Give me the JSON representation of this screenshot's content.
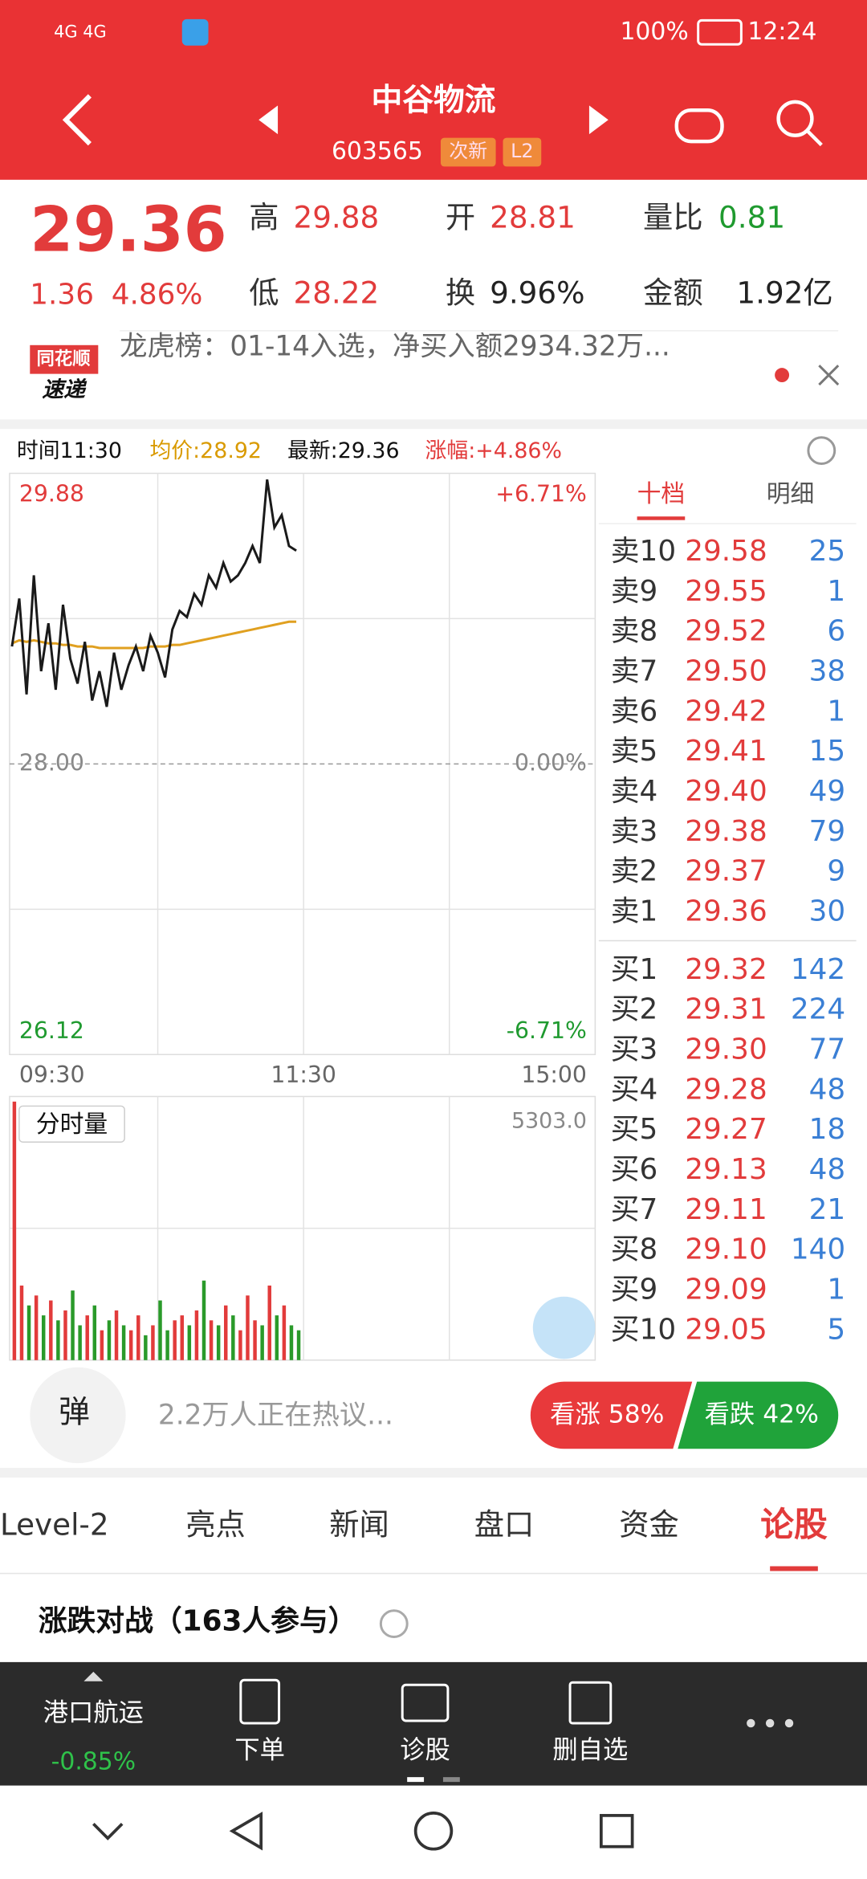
{
  "status": {
    "network": "4G 4G",
    "battery": "100%",
    "time": "12:24"
  },
  "header": {
    "name": "中谷物流",
    "code": "603565",
    "tags": [
      "次新",
      "L2"
    ]
  },
  "quote": {
    "price": "29.36",
    "change": "1.36",
    "percent": "4.86%",
    "stats": [
      {
        "label": "高",
        "value": "29.88"
      },
      {
        "label": "开",
        "value": "28.81"
      },
      {
        "label": "量比",
        "value": "0.81"
      },
      {
        "label": "低",
        "value": "28.22"
      },
      {
        "label": "换",
        "value": "9.96%"
      },
      {
        "label": "金额",
        "value": "1.92亿"
      }
    ]
  },
  "news": {
    "brand": [
      "同花顺",
      "速递"
    ],
    "text": "龙虎榜：01-14入选，净买入额2934.32万..."
  },
  "chart": {
    "time": "时间11:30",
    "average": "均价:28.92",
    "latest": "最新:29.36",
    "change": "涨幅:+4.86%",
    "ylim": [
      26.12,
      29.88
    ],
    "yticks": [
      29.88,
      {
        "value": 28,
        "label": "28.00"
      },
      26.12
    ],
    "y2ticks": [
      {
        "value": 6.71,
        "label": "+6.71%"
      },
      {
        "value": 0,
        "label": "0.00%"
      },
      {
        "value": -6.71,
        "label": "-6.71%"
      }
    ],
    "y2lim": [
      -6.71,
      6.71
    ],
    "xlim": [
      0,
      240
    ],
    "xticks": [
      {
        "value": 0,
        "label": "09:30"
      },
      {
        "value": 120,
        "label": "11:30"
      },
      {
        "value": 240,
        "label": "15:00"
      }
    ],
    "x": [
      0,
      3,
      6,
      9,
      12,
      15,
      18,
      21,
      24,
      27,
      30,
      33,
      36,
      39,
      42,
      45,
      48,
      51,
      54,
      57,
      60,
      63,
      66,
      69,
      72,
      75,
      78,
      81,
      84,
      87,
      90,
      93,
      96,
      99,
      102,
      105,
      108,
      111,
      114,
      117
    ],
    "price": [
      28.76,
      29.07,
      28.45,
      29.22,
      28.6,
      28.91,
      28.48,
      29.03,
      28.68,
      28.52,
      28.79,
      28.41,
      28.6,
      28.37,
      28.72,
      28.48,
      28.64,
      28.76,
      28.6,
      28.83,
      28.72,
      28.56,
      28.87,
      28.99,
      28.95,
      29.1,
      29.03,
      29.22,
      29.14,
      29.3,
      29.18,
      29.22,
      29.3,
      29.41,
      29.3,
      29.84,
      29.53,
      29.61,
      29.41,
      29.38
    ],
    "average_line": [
      28.78,
      28.8,
      28.79,
      28.8,
      28.79,
      28.78,
      28.78,
      28.77,
      28.77,
      28.76,
      28.76,
      28.76,
      28.75,
      28.75,
      28.75,
      28.75,
      28.75,
      28.75,
      28.75,
      28.76,
      28.76,
      28.76,
      28.77,
      28.77,
      28.78,
      28.79,
      28.8,
      28.81,
      28.82,
      28.83,
      28.84,
      28.85,
      28.86,
      28.87,
      28.88,
      28.89,
      28.9,
      28.91,
      28.92,
      28.92
    ],
    "price_color": "#1a1a1a",
    "average_color": "#e0a020",
    "volume_label": "分时量",
    "volume_max": "5303.0",
    "volume_ylim": [
      0,
      5303
    ],
    "volume": [
      5200,
      1500,
      1100,
      1300,
      900,
      1200,
      800,
      1000,
      1400,
      700,
      900,
      1100,
      600,
      800,
      1000,
      700,
      600,
      900,
      500,
      700,
      1200,
      600,
      800,
      900,
      700,
      1000,
      1600,
      800,
      700,
      1100,
      900,
      600,
      1300,
      800,
      700,
      1500,
      900,
      1100,
      700,
      600
    ],
    "up_color": "#e23b3b",
    "down_color": "#2a9a2a"
  },
  "order_book": {
    "tabs": [
      "十档",
      "明细"
    ],
    "sell": [
      {
        "label": "卖10",
        "price": "29.58",
        "volume": "25"
      },
      {
        "label": "卖9",
        "price": "29.55",
        "volume": "1"
      },
      {
        "label": "卖8",
        "price": "29.52",
        "volume": "6"
      },
      {
        "label": "卖7",
        "price": "29.50",
        "volume": "38"
      },
      {
        "label": "卖6",
        "price": "29.42",
        "volume": "1"
      },
      {
        "label": "卖5",
        "price": "29.41",
        "volume": "15"
      },
      {
        "label": "卖4",
        "price": "29.40",
        "volume": "49"
      },
      {
        "label": "卖3",
        "price": "29.38",
        "volume": "79"
      },
      {
        "label": "卖2",
        "price": "29.37",
        "volume": "9"
      },
      {
        "label": "卖1",
        "price": "29.36",
        "volume": "30"
      }
    ],
    "buy": [
      {
        "label": "买1",
        "price": "29.32",
        "volume": "142"
      },
      {
        "label": "买2",
        "price": "29.31",
        "volume": "224"
      },
      {
        "label": "买3",
        "price": "29.30",
        "volume": "77"
      },
      {
        "label": "买4",
        "price": "29.28",
        "volume": "48"
      },
      {
        "label": "买5",
        "price": "29.27",
        "volume": "18"
      },
      {
        "label": "买6",
        "price": "29.13",
        "volume": "48"
      },
      {
        "label": "买7",
        "price": "29.11",
        "volume": "21"
      },
      {
        "label": "买8",
        "price": "29.10",
        "volume": "140"
      },
      {
        "label": "买9",
        "price": "29.09",
        "volume": "1"
      },
      {
        "label": "买10",
        "price": "29.05",
        "volume": "5"
      }
    ]
  },
  "discussion": {
    "button": "弹",
    "text": "2.2万人正在热议...",
    "bull": "看涨 58%",
    "bear": "看跌 42%"
  },
  "tabs": [
    "Level-2",
    "亮点",
    "新闻",
    "盘口",
    "资金",
    "论股"
  ],
  "section": {
    "title": "涨跌对战（163人参与）"
  },
  "toolbar": {
    "sector": "港口航运",
    "sector_change": "-0.85%",
    "buttons": [
      "下单",
      "诊股",
      "删自选"
    ]
  }
}
